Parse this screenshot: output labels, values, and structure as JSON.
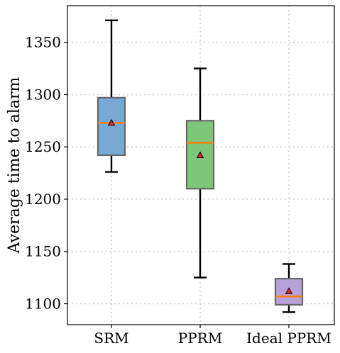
{
  "chart_data": {
    "type": "box",
    "title": "",
    "xlabel": "",
    "ylabel": "Average time to alarm",
    "ylim": [
      1080,
      1385
    ],
    "yticks": [
      1100,
      1150,
      1200,
      1250,
      1300,
      1350
    ],
    "grid": true,
    "categories": [
      "SRM",
      "PPRM",
      "Ideal PPRM"
    ],
    "boxes": [
      {
        "category": "SRM",
        "whisker_low": 1226,
        "q1": 1242,
        "median": 1273,
        "q3": 1297,
        "whisker_high": 1371,
        "mean": 1273,
        "color": "#76a9d4"
      },
      {
        "category": "PPRM",
        "whisker_low": 1125,
        "q1": 1210,
        "median": 1254,
        "q3": 1275,
        "whisker_high": 1325,
        "mean": 1242,
        "color": "#7ec77a"
      },
      {
        "category": "Ideal PPRM",
        "whisker_low": 1092,
        "q1": 1099,
        "median": 1107,
        "q3": 1124,
        "whisker_high": 1138,
        "mean": 1112,
        "color": "#b7a1d6"
      }
    ],
    "median_color": "#ff7f0e",
    "mean_marker_color": "#d62728"
  }
}
